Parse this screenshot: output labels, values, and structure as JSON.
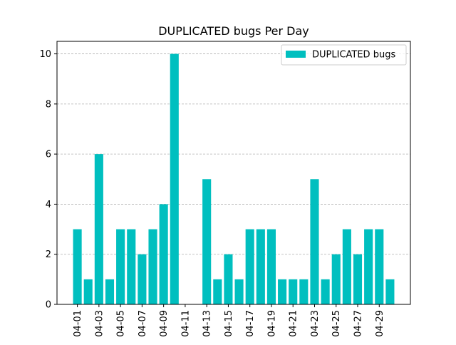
{
  "chart_data": {
    "type": "bar",
    "title": "DUPLICATED bugs Per Day",
    "xlabel": "",
    "ylabel": "",
    "ylim": [
      0,
      10.5
    ],
    "yticks": [
      0,
      2,
      4,
      6,
      8,
      10
    ],
    "grid": "y-dashed",
    "legend_position": "top-right",
    "categories": [
      "04-01",
      "04-02",
      "04-03",
      "04-04",
      "04-05",
      "04-06",
      "04-07",
      "04-08",
      "04-09",
      "04-10",
      "04-11",
      "04-12",
      "04-13",
      "04-14",
      "04-15",
      "04-16",
      "04-17",
      "04-18",
      "04-19",
      "04-20",
      "04-21",
      "04-22",
      "04-23",
      "04-24",
      "04-25",
      "04-26",
      "04-27",
      "04-28",
      "04-29",
      "04-30"
    ],
    "xtick_labels": [
      "04-01",
      "04-03",
      "04-05",
      "04-07",
      "04-09",
      "04-11",
      "04-13",
      "04-15",
      "04-17",
      "04-19",
      "04-21",
      "04-23",
      "04-25",
      "04-27",
      "04-29"
    ],
    "series": [
      {
        "name": "DUPLICATED bugs",
        "color": "#00bfbf",
        "values": [
          3,
          1,
          6,
          1,
          3,
          3,
          2,
          3,
          4,
          10,
          0,
          0,
          5,
          1,
          2,
          1,
          3,
          3,
          3,
          1,
          1,
          1,
          5,
          1,
          2,
          3,
          2,
          3,
          3,
          1
        ]
      }
    ]
  }
}
